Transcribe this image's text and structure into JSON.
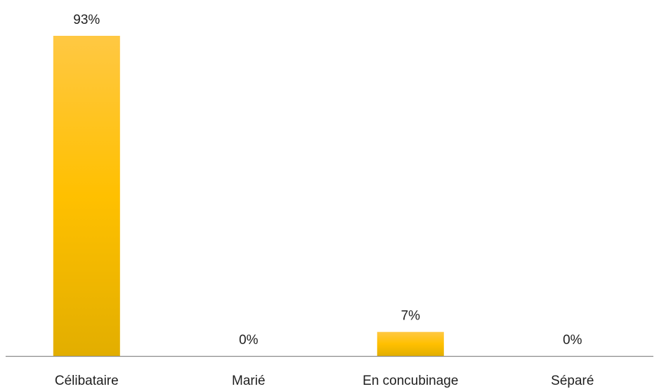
{
  "chart_data": {
    "type": "bar",
    "categories": [
      "Célibataire",
      "Marié",
      "En concubinage",
      "Séparé"
    ],
    "values": [
      93,
      0,
      7,
      0
    ],
    "data_labels": [
      "93%",
      "0%",
      "7%",
      "0%"
    ],
    "unit": "%",
    "ylim": [
      0,
      93
    ],
    "grid": false,
    "legend": "none",
    "bar_color": "#FFC000",
    "bar_gradient": [
      "#FFC843",
      "#FFC000",
      "#E2AE00"
    ],
    "axis_color": "#8c8c8c"
  }
}
